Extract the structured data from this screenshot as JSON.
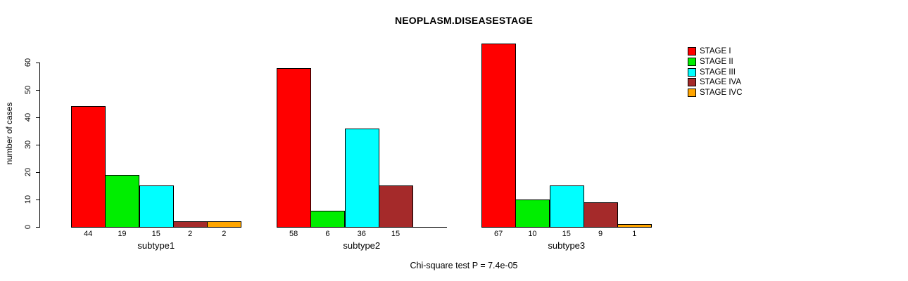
{
  "title": "NEOPLASM.DISEASESTAGE",
  "chart_data": {
    "type": "bar",
    "title": "NEOPLASM.DISEASESTAGE",
    "xlabel": "",
    "ylabel": "number of cases",
    "ylim": [
      0,
      60
    ],
    "yticks": [
      0,
      10,
      20,
      30,
      40,
      50,
      60
    ],
    "grid": false,
    "legend_position": "right",
    "categories": [
      "subtype1",
      "subtype2",
      "subtype3"
    ],
    "series": [
      {
        "name": "STAGE I",
        "color": "#FF0000",
        "values": [
          44,
          58,
          67
        ]
      },
      {
        "name": "STAGE II",
        "color": "#00EE00",
        "values": [
          19,
          6,
          10
        ]
      },
      {
        "name": "STAGE III",
        "color": "#00FFFF",
        "values": [
          15,
          36,
          15
        ]
      },
      {
        "name": "STAGE IVA",
        "color": "#A52A2A",
        "values": [
          2,
          15,
          9
        ]
      },
      {
        "name": "STAGE IVC",
        "color": "#FFA500",
        "values": [
          2,
          0,
          1
        ]
      }
    ],
    "bar_labels": [
      [
        "44",
        "19",
        "15",
        "2",
        "2"
      ],
      [
        "58",
        "6",
        "36",
        "15",
        ""
      ],
      [
        "67",
        "10",
        "15",
        "9",
        "1"
      ]
    ],
    "annotation": "Chi-square test P = 7.4e-05"
  }
}
